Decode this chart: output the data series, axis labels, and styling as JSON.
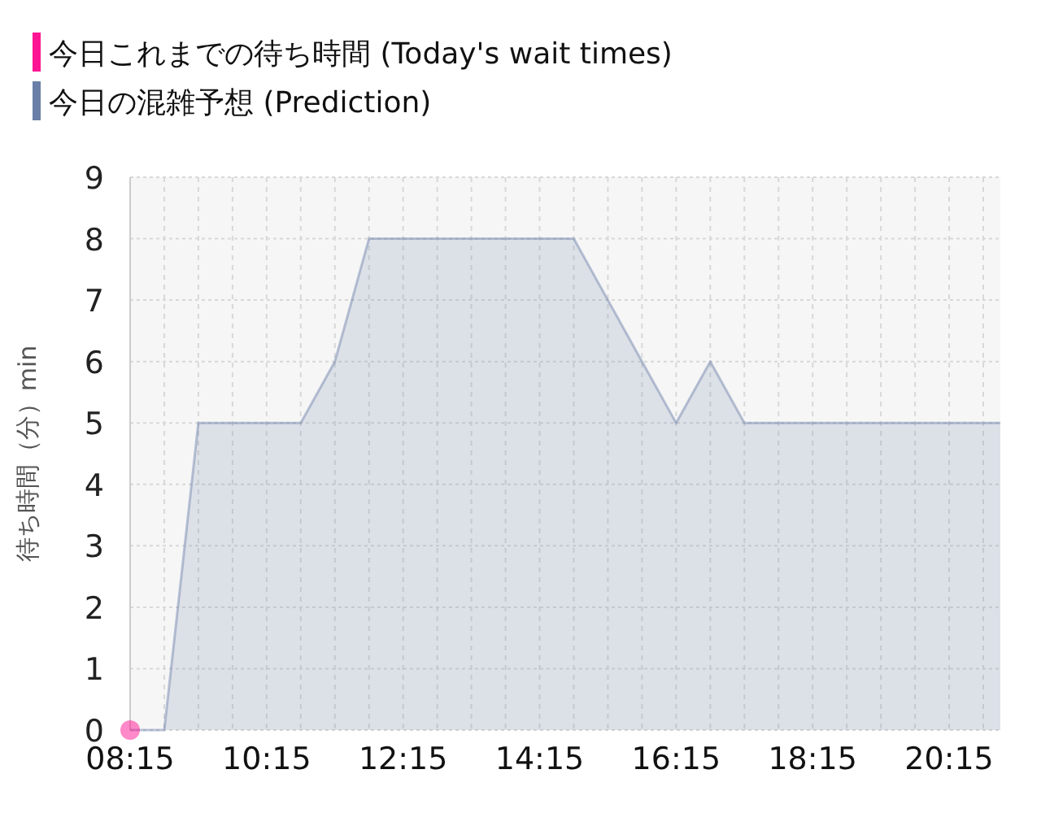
{
  "chart_data": {
    "type": "area",
    "ylabel": "待ち時間（分）min",
    "xlim": [
      8.25,
      21.0
    ],
    "ylim": [
      0,
      9
    ],
    "xticks": [
      {
        "value": 8.25,
        "label": "08:15"
      },
      {
        "value": 8.75,
        "label": null
      },
      {
        "value": 9.25,
        "label": null
      },
      {
        "value": 9.75,
        "label": null
      },
      {
        "value": 10.25,
        "label": "10:15"
      },
      {
        "value": 10.75,
        "label": null
      },
      {
        "value": 11.25,
        "label": null
      },
      {
        "value": 11.75,
        "label": null
      },
      {
        "value": 12.25,
        "label": "12:15"
      },
      {
        "value": 12.75,
        "label": null
      },
      {
        "value": 13.25,
        "label": null
      },
      {
        "value": 13.75,
        "label": null
      },
      {
        "value": 14.25,
        "label": "14:15"
      },
      {
        "value": 14.75,
        "label": null
      },
      {
        "value": 15.25,
        "label": null
      },
      {
        "value": 15.75,
        "label": null
      },
      {
        "value": 16.25,
        "label": "16:15"
      },
      {
        "value": 16.75,
        "label": null
      },
      {
        "value": 17.25,
        "label": null
      },
      {
        "value": 17.75,
        "label": null
      },
      {
        "value": 18.25,
        "label": "18:15"
      },
      {
        "value": 18.75,
        "label": null
      },
      {
        "value": 19.25,
        "label": null
      },
      {
        "value": 19.75,
        "label": null
      },
      {
        "value": 20.25,
        "label": "20:15"
      },
      {
        "value": 20.75,
        "label": null
      }
    ],
    "yticks": [
      0,
      1,
      2,
      3,
      4,
      5,
      6,
      7,
      8,
      9
    ],
    "grid": true,
    "legend": "top left",
    "series": [
      {
        "name": "今日これまでの待ち時間 (Today's wait times)",
        "type": "scatter",
        "marker": "circle",
        "color": "#ff1493",
        "x": [
          8.25
        ],
        "values": [
          0
        ]
      },
      {
        "name": "今日の混雑予想 (Prediction)",
        "marker": "none",
        "color": "#6a7fa8",
        "x": [
          8.25,
          8.75,
          9.25,
          10.25,
          10.75,
          11.25,
          11.75,
          12.25,
          13.25,
          14.25,
          14.75,
          15.25,
          15.75,
          16.25,
          16.75,
          17.25,
          18.25,
          19.25,
          20.25,
          21.0
        ],
        "values": [
          0,
          0,
          5,
          5,
          5,
          6,
          8,
          8,
          8,
          8,
          8,
          7,
          6,
          5,
          6,
          5,
          5,
          5,
          5,
          5
        ]
      }
    ]
  }
}
